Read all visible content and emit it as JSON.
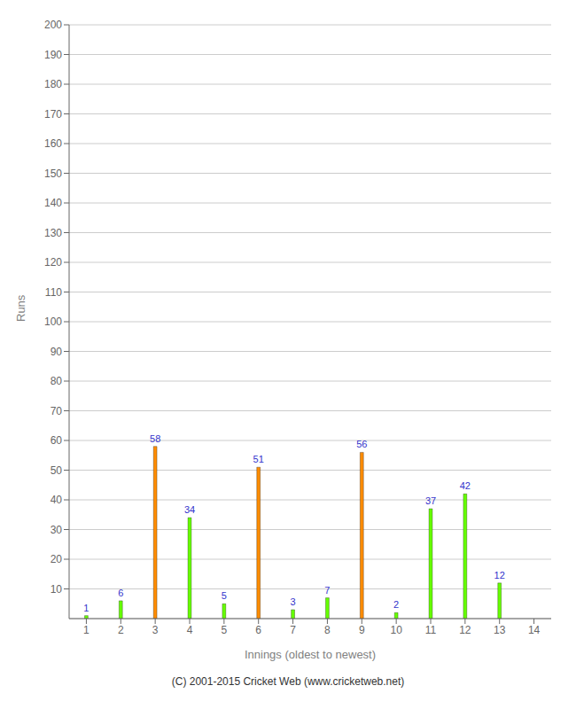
{
  "chart_data": {
    "type": "bar",
    "xlabel": "Innings (oldest to newest)",
    "ylabel": "Runs",
    "categories": [
      1,
      2,
      3,
      4,
      5,
      6,
      7,
      8,
      9,
      10,
      11,
      12,
      13,
      14
    ],
    "values": [
      1,
      6,
      58,
      34,
      5,
      51,
      3,
      7,
      56,
      2,
      37,
      42,
      12,
      0
    ],
    "colors": [
      "#66ff00",
      "#66ff00",
      "#ff8c00",
      "#66ff00",
      "#66ff00",
      "#ff8c00",
      "#66ff00",
      "#66ff00",
      "#ff8c00",
      "#66ff00",
      "#66ff00",
      "#66ff00",
      "#66ff00",
      "#66ff00"
    ],
    "ylim": [
      0,
      200
    ],
    "yticks": [
      10,
      20,
      30,
      40,
      50,
      60,
      70,
      80,
      90,
      100,
      110,
      120,
      130,
      140,
      150,
      160,
      170,
      180,
      190,
      200
    ],
    "grid": true,
    "data_labels": true,
    "annotations": [
      "(C) 2001-2015 Cricket Web (www.cricketweb.net)"
    ]
  }
}
